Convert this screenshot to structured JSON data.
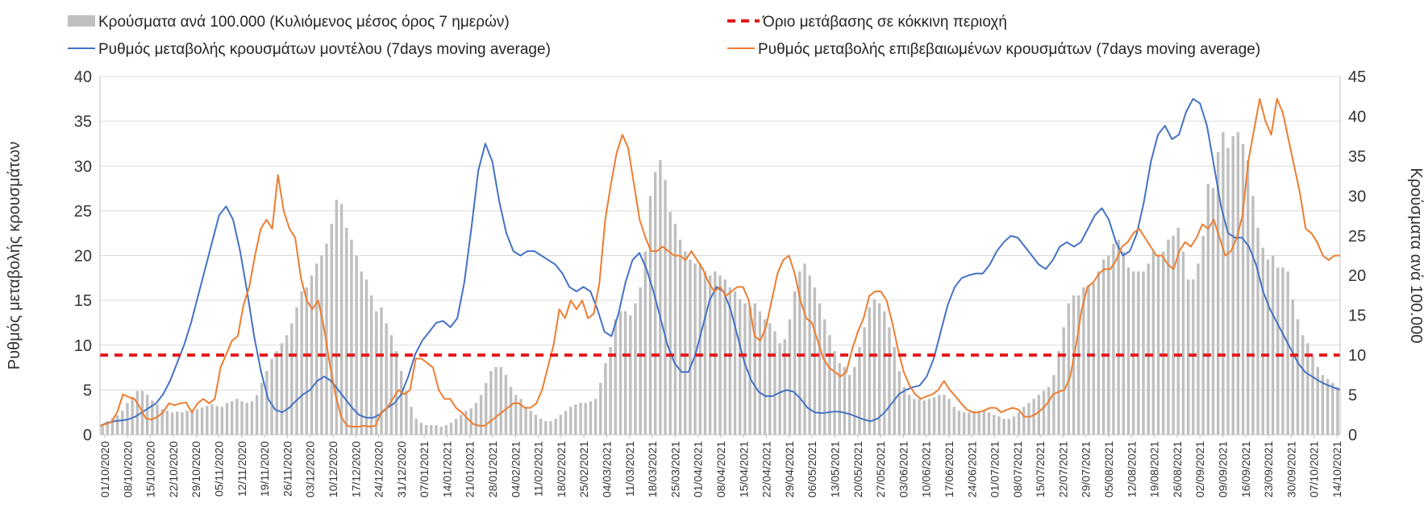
{
  "chart_data": {
    "type": "bar+line",
    "x_tick_labels": [
      "01/10/2020",
      "08/10/2020",
      "15/10/2020",
      "22/10/2020",
      "29/10/2020",
      "05/11/2020",
      "12/11/2020",
      "19/11/2020",
      "26/11/2020",
      "03/12/2020",
      "10/12/2020",
      "17/12/2020",
      "24/12/2020",
      "31/12/2020",
      "07/01/2021",
      "14/01/2021",
      "21/01/2021",
      "28/01/2021",
      "04/02/2021",
      "11/02/2021",
      "18/02/2021",
      "25/02/2021",
      "04/03/2021",
      "11/03/2021",
      "18/03/2021",
      "25/03/2021",
      "01/04/2021",
      "08/04/2021",
      "15/04/2021",
      "22/04/2021",
      "29/04/2021",
      "06/05/2021",
      "13/05/2021",
      "20/05/2021",
      "27/05/2021",
      "03/06/2021",
      "10/06/2021",
      "17/06/2021",
      "24/06/2021",
      "01/07/2021",
      "08/07/2021",
      "15/07/2021",
      "22/07/2021",
      "29/07/2021",
      "05/08/2021",
      "12/08/2021",
      "19/08/2021",
      "26/08/2021",
      "02/09/2021",
      "09/09/2021",
      "16/09/2021",
      "23/09/2021",
      "30/09/2021",
      "07/10/2021",
      "14/10/2021"
    ],
    "left_axis": {
      "label": "Ρυθμός μεταβολής κρουσμάτων",
      "range": [
        0,
        40
      ],
      "ticks": [
        0,
        5,
        10,
        15,
        20,
        25,
        30,
        35,
        40
      ]
    },
    "right_axis": {
      "label": "Κρούσματα ανά 100.000",
      "range": [
        0,
        45
      ],
      "ticks": [
        0,
        5,
        10,
        15,
        20,
        25,
        30,
        35,
        40,
        45
      ]
    },
    "grid": "horizontal",
    "legend_placement": "top",
    "threshold": {
      "name": "Όριο μετάβασης σε κόκκινη περιοχή",
      "axis": "right",
      "value": 10,
      "color": "#e31a1c"
    },
    "series": [
      {
        "name": "Κρούσματα ανά 100.000 (Κυλιόμενος μέσος όρος 7 ημερών)",
        "kind": "bar",
        "axis": "right",
        "color": "#bfbfbf",
        "values": [
          1.3,
          1.7,
          2.1,
          2.4,
          3.0,
          4.0,
          4.7,
          5.5,
          5.5,
          5.0,
          4.3,
          3.8,
          3.2,
          3.0,
          2.8,
          2.9,
          2.8,
          3.0,
          3.0,
          3.2,
          3.4,
          3.6,
          3.8,
          3.6,
          3.5,
          4.0,
          4.2,
          4.5,
          4.2,
          4.0,
          4.2,
          5.0,
          6.5,
          8.0,
          9.5,
          10.5,
          11.5,
          12.5,
          14.0,
          16.0,
          18.0,
          18.5,
          20.0,
          21.5,
          22.5,
          24.0,
          26.5,
          29.5,
          29.0,
          26.0,
          24.5,
          22.5,
          20.5,
          19.5,
          17.5,
          15.5,
          16.0,
          14.0,
          12.5,
          10.5,
          8.0,
          5.5,
          3.5,
          2.0,
          1.5,
          1.2,
          1.2,
          1.2,
          1.0,
          1.2,
          1.5,
          2.0,
          2.5,
          3.0,
          3.3,
          4.0,
          5.0,
          6.5,
          8.0,
          8.5,
          8.5,
          7.5,
          6.0,
          5.0,
          4.5,
          3.5,
          3.0,
          2.5,
          2.0,
          1.7,
          1.7,
          2.0,
          2.5,
          3.0,
          3.5,
          3.8,
          4.0,
          4.0,
          4.2,
          4.5,
          6.5,
          9.0,
          11.0,
          14.5,
          15.5,
          15.5,
          15.0,
          16.5,
          18.5,
          23.0,
          30.0,
          33.0,
          34.5,
          32.0,
          28.0,
          26.5,
          24.5,
          23.0,
          22.0,
          21.5,
          21.5,
          20.5,
          20.0,
          20.5,
          20.0,
          19.5,
          18.5,
          18.0,
          17.0,
          16.5,
          16.0,
          16.5,
          15.5,
          14.5,
          14.0,
          13.0,
          11.5,
          12.0,
          14.5,
          18.0,
          20.5,
          21.5,
          20.0,
          18.5,
          16.5,
          14.5,
          12.5,
          10.5,
          9.0,
          8.5,
          7.5,
          8.5,
          11.0,
          13.5,
          16.0,
          17.0,
          16.5,
          15.5,
          13.5,
          11.0,
          8.0,
          6.0,
          5.0,
          4.5,
          4.5,
          4.3,
          4.5,
          4.7,
          5.0,
          5.0,
          4.5,
          3.5,
          3.0,
          2.8,
          2.8,
          3.0,
          3.0,
          3.0,
          2.8,
          2.5,
          2.3,
          2.0,
          2.0,
          2.3,
          2.8,
          3.5,
          4.0,
          4.5,
          5.0,
          5.5,
          6.0,
          7.5,
          10.5,
          13.5,
          16.5,
          17.5,
          17.5,
          18.5,
          18.8,
          19.0,
          20.5,
          22.0,
          22.5,
          24.0,
          24.5,
          23.0,
          21.0,
          20.5,
          20.5,
          20.5,
          21.5,
          23.0,
          22.5,
          23.0,
          24.5,
          25.0,
          26.0,
          23.0,
          19.5,
          19.5,
          21.5,
          25.0,
          31.5,
          31.0,
          35.5,
          38.0,
          36.0,
          37.5,
          38.0,
          36.5,
          34.5,
          30.0,
          26.0,
          23.5,
          22.0,
          22.5,
          21.0,
          21.0,
          20.5,
          17.0,
          14.5,
          12.5,
          11.5,
          10.0,
          8.5,
          7.5,
          7.0,
          6.5,
          6.0
        ]
      },
      {
        "name": "Ρυθμός μεταβολής κρουσμάτων μοντέλου (7days moving average)",
        "kind": "line",
        "axis": "left",
        "color": "#4472c4",
        "values": [
          1.0,
          1.3,
          1.5,
          1.6,
          1.7,
          2.0,
          2.5,
          3.0,
          3.5,
          4.5,
          6.0,
          8.0,
          10.0,
          12.5,
          15.5,
          18.5,
          21.5,
          24.5,
          25.5,
          24.0,
          20.5,
          16.0,
          11.0,
          7.0,
          4.0,
          2.8,
          2.5,
          3.0,
          3.8,
          4.5,
          5.0,
          6.0,
          6.5,
          6.0,
          5.0,
          4.0,
          3.0,
          2.2,
          1.9,
          1.9,
          2.3,
          3.0,
          3.5,
          4.5,
          6.5,
          9.0,
          10.5,
          11.5,
          12.5,
          12.7,
          12.0,
          13.0,
          17.0,
          23.0,
          29.5,
          32.5,
          30.5,
          26.0,
          22.5,
          20.5,
          20.0,
          20.5,
          20.5,
          20.0,
          19.5,
          19.0,
          18.0,
          16.5,
          16.0,
          16.5,
          16.0,
          14.0,
          11.5,
          11.0,
          13.5,
          17.0,
          19.5,
          20.3,
          18.5,
          16.0,
          13.0,
          10.0,
          8.0,
          7.0,
          7.0,
          9.0,
          12.0,
          15.0,
          16.5,
          16.0,
          14.0,
          11.0,
          8.0,
          6.0,
          4.8,
          4.3,
          4.3,
          4.7,
          5.0,
          4.8,
          4.0,
          3.0,
          2.5,
          2.4,
          2.5,
          2.6,
          2.5,
          2.3,
          2.0,
          1.7,
          1.5,
          1.8,
          2.5,
          3.5,
          4.5,
          5.0,
          5.3,
          5.5,
          6.5,
          8.5,
          11.5,
          14.5,
          16.5,
          17.5,
          17.8,
          18.0,
          18.0,
          19.0,
          20.5,
          21.5,
          22.2,
          22.0,
          21.0,
          20.0,
          19.0,
          18.5,
          19.5,
          21.0,
          21.5,
          21.0,
          21.5,
          23.0,
          24.5,
          25.3,
          24.0,
          21.5,
          20.0,
          20.5,
          22.5,
          26.0,
          30.5,
          33.5,
          34.5,
          33.0,
          33.5,
          36.0,
          37.5,
          37.0,
          34.5,
          30.0,
          25.5,
          22.5,
          22.0,
          22.0,
          21.0,
          19.0,
          16.0,
          14.0,
          12.5,
          11.0,
          9.5,
          8.0,
          7.0,
          6.5,
          6.0,
          5.6,
          5.3,
          5.0
        ]
      },
      {
        "name": "Ρυθμός μεταβολής επιβεβαιωμένων κρουσμάτων (7days moving average)",
        "kind": "line",
        "axis": "left",
        "color": "#ed7d31",
        "values": [
          1.0,
          1.2,
          1.4,
          2.5,
          4.5,
          4.2,
          4.0,
          3.0,
          1.8,
          1.7,
          2.0,
          2.5,
          3.5,
          3.3,
          3.5,
          3.6,
          2.5,
          3.5,
          4.0,
          3.5,
          4.0,
          7.5,
          9.0,
          10.5,
          11.0,
          14.5,
          16.5,
          20.0,
          23.0,
          24.0,
          23.0,
          29.0,
          25.0,
          23.0,
          22.0,
          17.5,
          15.0,
          14.0,
          15.0,
          12.0,
          8.0,
          4.5,
          2.0,
          1.0,
          0.9,
          0.9,
          1.0,
          0.9,
          1.0,
          2.5,
          3.0,
          4.0,
          5.0,
          4.5,
          5.0,
          8.5,
          8.5,
          8.0,
          7.5,
          5.0,
          4.0,
          4.0,
          3.0,
          2.5,
          1.8,
          1.2,
          1.0,
          1.0,
          1.5,
          2.0,
          2.5,
          3.0,
          3.5,
          3.5,
          3.0,
          3.0,
          3.5,
          5.0,
          7.5,
          10.0,
          14.0,
          13.0,
          15.0,
          14.0,
          15.0,
          13.0,
          13.5,
          17.0,
          24.0,
          28.0,
          31.5,
          33.5,
          32.0,
          28.0,
          24.0,
          22.0,
          20.5,
          20.5,
          21.0,
          20.5,
          20.0,
          20.0,
          19.5,
          20.5,
          19.5,
          18.5,
          17.0,
          16.0,
          16.5,
          15.5,
          16.0,
          16.5,
          16.5,
          15.0,
          11.0,
          10.5,
          12.0,
          15.0,
          18.0,
          19.5,
          20.0,
          18.0,
          15.0,
          13.0,
          12.5,
          10.5,
          8.5,
          7.5,
          7.0,
          6.5,
          7.0,
          9.5,
          11.5,
          13.0,
          15.5,
          16.0,
          16.0,
          15.0,
          12.5,
          9.5,
          7.0,
          5.5,
          4.5,
          4.0,
          4.3,
          4.5,
          5.0,
          6.0,
          5.0,
          4.3,
          3.5,
          2.8,
          2.5,
          2.5,
          2.7,
          3.0,
          3.0,
          2.5,
          2.8,
          3.0,
          2.8,
          2.0,
          2.0,
          2.3,
          2.8,
          3.5,
          4.5,
          4.8,
          5.0,
          6.5,
          10.0,
          14.0,
          16.5,
          17.0,
          18.0,
          18.5,
          18.5,
          19.5,
          21.0,
          21.5,
          22.5,
          23.0,
          22.0,
          21.0,
          20.0,
          20.0,
          19.0,
          18.5,
          20.5,
          21.5,
          21.0,
          22.0,
          23.5,
          23.0,
          24.0,
          22.0,
          20.0,
          20.5,
          22.0,
          24.5,
          30.5,
          34.0,
          37.5,
          35.0,
          33.5,
          37.5,
          36.0,
          33.0,
          30.0,
          27.0,
          23.0,
          22.5,
          21.5,
          20.0,
          19.5,
          20.0,
          20.0
        ]
      }
    ]
  }
}
